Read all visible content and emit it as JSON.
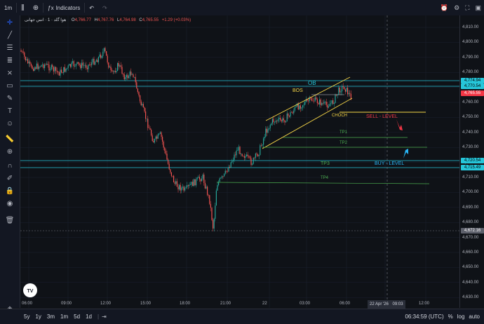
{
  "toolbar": {
    "interval": "1m",
    "indicators_label": "Indicators"
  },
  "legend": {
    "symbol": "هوا گلد · 1 · انس جهانی",
    "o_label": "O",
    "o_value": "4,766.77",
    "h_label": "H",
    "h_value": "4,767.76",
    "l_label": "L",
    "l_value": "4,764.98",
    "c_label": "C",
    "c_value": "4,765.55",
    "change": "+1.29 (+0.03%)"
  },
  "price_axis": {
    "labels": [
      "4,810.00",
      "4,800.00",
      "4,790.00",
      "4,780.00",
      "4,770.00",
      "4,760.00",
      "4,750.00",
      "4,740.00",
      "4,730.00",
      "4,720.00",
      "4,710.00",
      "4,700.00",
      "4,690.00",
      "4,680.00",
      "4,670.00",
      "4,660.00",
      "4,650.00",
      "4,640.00",
      "4,630.00"
    ],
    "tags": [
      {
        "text": "4,774.94",
        "bg": "#26c6da",
        "fg": "#000000"
      },
      {
        "text": "4,770.54",
        "bg": "#26c6da",
        "fg": "#000000"
      },
      {
        "text": "4,765.55",
        "bg": "#f23645",
        "fg": "#ffffff"
      },
      {
        "text": "4,720.54",
        "bg": "#26c6da",
        "fg": "#000000"
      },
      {
        "text": "4,715.49",
        "bg": "#26c6da",
        "fg": "#000000"
      },
      {
        "text": "4,672.16",
        "bg": "#5d606b",
        "fg": "#ffffff"
      }
    ]
  },
  "time_axis": {
    "labels": [
      "06:00",
      "09:00",
      "12:00",
      "15:00",
      "18:00",
      "21:00",
      "22",
      "03:00",
      "06:00",
      "09:00",
      "12:00"
    ],
    "cursor_date": "22 Apr '26",
    "cursor_time": "09:03"
  },
  "annotations": {
    "ob": "OB",
    "bos": "BOS",
    "choch": "CHOCH",
    "sell_level": "SELL - LEVEL",
    "buy_level": "BUY - LEVEL",
    "tp1": "TP1",
    "tp2": "TP2",
    "tp3": "TP3",
    "tp4": "TP4"
  },
  "bottombar": {
    "ranges": [
      "5y",
      "1y",
      "3m",
      "1m",
      "5d",
      "1d"
    ],
    "clock": "06:34:59 (UTC)",
    "percent": "%",
    "log": "log",
    "auto": "auto"
  },
  "colors": {
    "up": "#26a69a",
    "down": "#ef5350",
    "zone": "#26c6da",
    "channel": "#f5d547",
    "tp": "#4caf50",
    "sell": "#f23645",
    "buy": "#29b6f6"
  }
}
